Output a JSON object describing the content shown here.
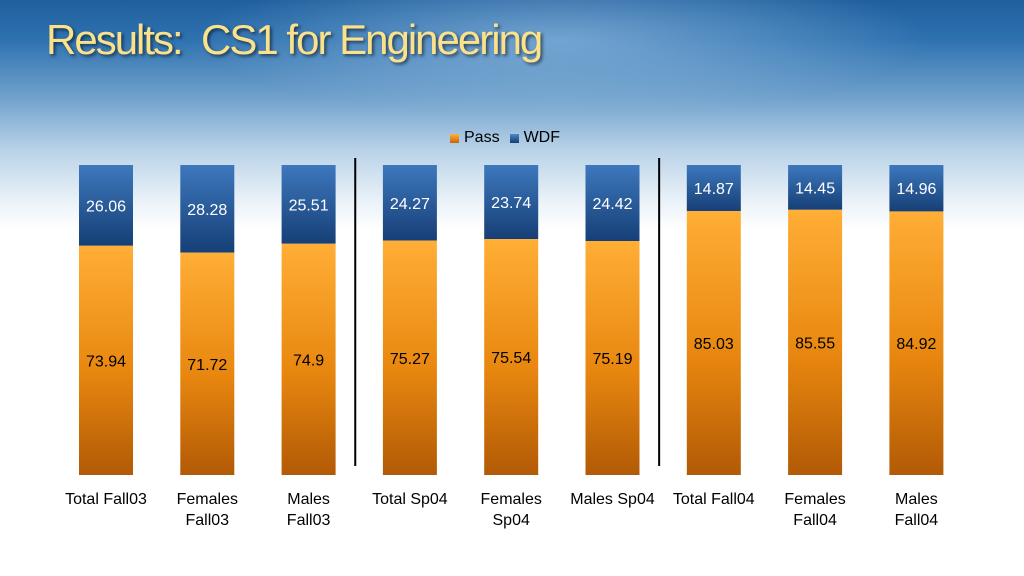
{
  "slide": {
    "title": "Results:  CS1 for Engineering"
  },
  "chart_data": {
    "type": "bar",
    "stacked": true,
    "categories": [
      [
        "Total Fall03"
      ],
      [
        "Females",
        "Fall03"
      ],
      [
        "Males",
        "Fall03"
      ],
      [
        "Total Sp04"
      ],
      [
        "Females",
        "Sp04"
      ],
      [
        "Males Sp04"
      ],
      [
        "Total Fall04"
      ],
      [
        "Females",
        "Fall04"
      ],
      [
        "Males",
        "Fall04"
      ]
    ],
    "series": [
      {
        "name": "Pass",
        "values": [
          73.94,
          71.72,
          74.9,
          75.27,
          75.54,
          75.19,
          85.03,
          85.55,
          84.92
        ],
        "color": "#f39a1e"
      },
      {
        "name": "WDF",
        "values": [
          26.06,
          28.28,
          25.51,
          24.27,
          23.74,
          24.42,
          14.87,
          14.45,
          14.96
        ],
        "color": "#1f5aa0"
      }
    ],
    "data_labels": {
      "Pass": [
        "73.94",
        "71.72",
        "74.9",
        "75.27",
        "75.54",
        "75.19",
        "85.03",
        "85.55",
        "84.92"
      ],
      "WDF": [
        "26.06",
        "28.28",
        "25.51",
        "24.27",
        "23.74",
        "24.42",
        "14.87",
        "14.45",
        "14.96"
      ]
    },
    "legend_position": "top",
    "group_separators_after": [
      2,
      5
    ],
    "grid": false
  }
}
